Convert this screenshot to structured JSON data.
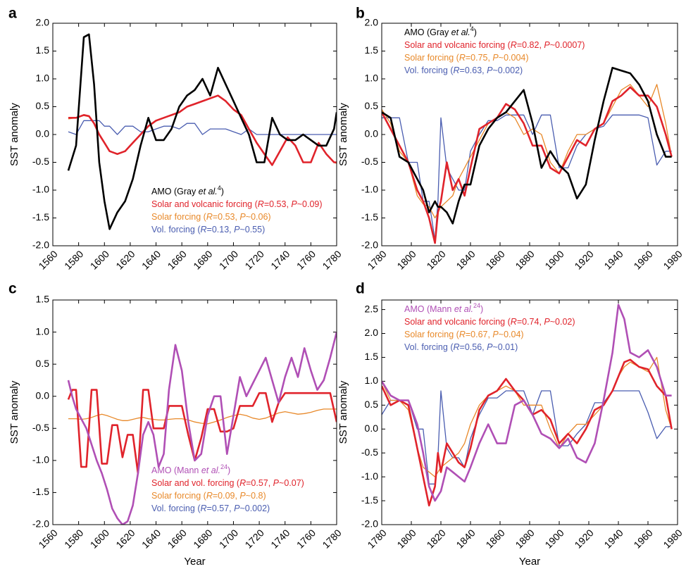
{
  "chart_data": [
    {
      "type": "line",
      "panel_label": "a",
      "ylabel": "SST anomaly",
      "legend": "lower right",
      "xlim": [
        1560,
        1780
      ],
      "xticks": [
        1560,
        1580,
        1600,
        1620,
        1640,
        1660,
        1680,
        1700,
        1720,
        1740,
        1760,
        1780
      ],
      "ylim": [
        -2,
        2
      ],
      "yticks": [
        {
          "value": -2,
          "label": "-2.0"
        },
        -1.5,
        {
          "value": -1,
          "label": "-1.0"
        },
        -0.5,
        {
          "value": 0,
          "label": "0.0"
        },
        0.5,
        {
          "value": 1,
          "label": "1.0"
        },
        1.5,
        {
          "value": 2,
          "label": "2.0"
        }
      ],
      "x": [
        1572,
        1578,
        1584,
        1588,
        1592,
        1596,
        1600,
        1604,
        1610,
        1616,
        1622,
        1628,
        1634,
        1640,
        1646,
        1652,
        1658,
        1664,
        1670,
        1676,
        1682,
        1688,
        1694,
        1700,
        1706,
        1712,
        1718,
        1724,
        1730,
        1736,
        1742,
        1748,
        1754,
        1760,
        1766,
        1772,
        1778,
        1780
      ],
      "series": [
        {
          "name": "AMO (Gray et al.4)",
          "color": "#000000",
          "width": 2.6,
          "values": [
            -0.65,
            -0.2,
            1.75,
            1.8,
            0.9,
            -0.5,
            -1.2,
            -1.7,
            -1.4,
            -1.2,
            -0.8,
            -0.2,
            0.3,
            -0.1,
            -0.1,
            0.1,
            0.5,
            0.7,
            0.8,
            1.0,
            0.7,
            1.2,
            0.9,
            0.6,
            0.3,
            0.0,
            -0.5,
            -0.5,
            0.3,
            0.0,
            -0.1,
            -0.1,
            0.0,
            -0.1,
            -0.2,
            -0.2,
            0.1,
            0.4
          ]
        },
        {
          "name": "Solar and volcanic forcing (R=0.53, P~0.09)",
          "color": "#e0232b",
          "width": 2.6,
          "values": [
            0.3,
            0.3,
            0.35,
            0.33,
            0.2,
            0.0,
            -0.15,
            -0.3,
            -0.35,
            -0.3,
            -0.15,
            0.0,
            0.15,
            0.25,
            0.3,
            0.35,
            0.4,
            0.5,
            0.55,
            0.6,
            0.65,
            0.7,
            0.6,
            0.45,
            0.35,
            0.1,
            -0.15,
            -0.35,
            -0.55,
            -0.3,
            -0.05,
            -0.2,
            -0.5,
            -0.5,
            -0.15,
            -0.35,
            -0.5,
            -0.5
          ]
        },
        {
          "name": "Solar forcing (R=0.53, P~0.06)",
          "color": "#e8892a",
          "width": 1.3,
          "values": [
            0.28,
            0.3,
            0.34,
            0.32,
            0.2,
            0.0,
            -0.16,
            -0.3,
            -0.36,
            -0.3,
            -0.16,
            0.0,
            0.14,
            0.24,
            0.3,
            0.34,
            0.4,
            0.5,
            0.54,
            0.6,
            0.66,
            0.7,
            0.6,
            0.44,
            0.34,
            0.1,
            -0.16,
            -0.36,
            -0.55,
            -0.3,
            -0.06,
            -0.2,
            -0.5,
            -0.5,
            -0.16,
            -0.36,
            -0.5,
            -0.52
          ]
        },
        {
          "name": "Vol. forcing (R=0.13, P~0.55)",
          "color": "#4a5db0",
          "width": 1.3,
          "values": [
            0.05,
            0.0,
            0.25,
            0.25,
            0.25,
            0.25,
            0.15,
            0.15,
            0.0,
            0.15,
            0.15,
            0.05,
            0.05,
            0.1,
            0.15,
            0.15,
            0.1,
            0.2,
            0.2,
            0.0,
            0.1,
            0.1,
            0.1,
            0.05,
            0.0,
            0.1,
            0.0,
            0.0,
            0.0,
            0.0,
            0.0,
            0.0,
            0.0,
            0.0,
            0.0,
            0.0,
            0.0,
            0.0
          ]
        }
      ]
    },
    {
      "type": "line",
      "panel_label": "b",
      "ylabel": "SST anomaly",
      "legend": "upper left",
      "xlim": [
        1780,
        1980
      ],
      "xticks": [
        1780,
        1800,
        1820,
        1840,
        1860,
        1880,
        1900,
        1920,
        1940,
        1960,
        1980
      ],
      "ylim": [
        -2,
        2
      ],
      "yticks": [
        {
          "value": -2,
          "label": "-2.0"
        },
        -1.5,
        {
          "value": -1,
          "label": "-1.0"
        },
        -0.5,
        {
          "value": 0,
          "label": "0.0"
        },
        0.5,
        {
          "value": 1,
          "label": "1.0"
        },
        1.5,
        {
          "value": 2,
          "label": "2.0"
        }
      ],
      "x": [
        1780,
        1786,
        1792,
        1798,
        1804,
        1808,
        1812,
        1816,
        1818,
        1820,
        1824,
        1828,
        1832,
        1836,
        1840,
        1846,
        1852,
        1858,
        1864,
        1870,
        1876,
        1882,
        1888,
        1894,
        1900,
        1906,
        1912,
        1918,
        1924,
        1930,
        1936,
        1942,
        1948,
        1954,
        1960,
        1966,
        1972,
        1976
      ],
      "series": [
        {
          "name": "AMO (Gray et al.4)",
          "color": "#000000",
          "width": 2.6,
          "values": [
            0.4,
            0.3,
            -0.4,
            -0.5,
            -0.8,
            -1.0,
            -1.4,
            -1.2,
            -1.3,
            -1.3,
            -1.4,
            -1.6,
            -1.2,
            -0.9,
            -0.9,
            -0.2,
            0.1,
            0.3,
            0.4,
            0.6,
            0.8,
            0.2,
            -0.6,
            -0.3,
            -0.55,
            -0.7,
            -1.15,
            -0.9,
            -0.1,
            0.6,
            1.2,
            1.15,
            1.1,
            0.9,
            0.6,
            0.0,
            -0.4,
            -0.4
          ]
        },
        {
          "name": "Solar and volcanic forcing (R=0.82, P~0.0007)",
          "color": "#e0232b",
          "width": 2.6,
          "values": [
            0.4,
            0.1,
            -0.2,
            -0.5,
            -1.0,
            -1.2,
            -1.5,
            -1.95,
            -1.4,
            -1.2,
            -0.5,
            -1.0,
            -0.8,
            -1.1,
            -0.6,
            0.1,
            0.2,
            0.3,
            0.55,
            0.45,
            0.2,
            -0.2,
            -0.2,
            -0.6,
            -0.7,
            -0.4,
            -0.1,
            -0.2,
            0.1,
            0.2,
            0.6,
            0.7,
            0.85,
            0.7,
            0.7,
            0.5,
            0.0,
            -0.4
          ]
        },
        {
          "name": "Solar forcing (R=0.75, P~0.004)",
          "color": "#e8892a",
          "width": 1.3,
          "values": [
            0.45,
            0.2,
            -0.3,
            -0.5,
            -1.1,
            -1.25,
            -1.3,
            -1.5,
            -1.4,
            -1.3,
            -1.2,
            -1.1,
            -0.8,
            -0.6,
            -0.4,
            -0.1,
            0.2,
            0.3,
            0.4,
            0.3,
            0.0,
            0.1,
            0.0,
            -0.5,
            -0.7,
            -0.3,
            0.0,
            0.0,
            0.1,
            0.2,
            0.5,
            0.8,
            0.9,
            0.7,
            0.5,
            0.9,
            0.2,
            -0.4
          ]
        },
        {
          "name": "Vol. forcing (R=0.63, P~0.002)",
          "color": "#4a5db0",
          "width": 1.3,
          "values": [
            0.3,
            0.3,
            0.3,
            -0.5,
            -0.5,
            -1.2,
            -1.2,
            -1.9,
            -1.2,
            0.3,
            -0.6,
            -0.8,
            -1.0,
            -1.0,
            -0.3,
            0.0,
            0.25,
            0.25,
            0.35,
            0.35,
            0.35,
            0.0,
            0.35,
            0.35,
            -0.6,
            -0.6,
            -0.2,
            0.0,
            0.1,
            0.15,
            0.35,
            0.35,
            0.35,
            0.35,
            0.3,
            -0.55,
            -0.3,
            -0.3
          ]
        }
      ]
    },
    {
      "type": "line",
      "panel_label": "c",
      "ylabel": "SST anomaly",
      "xlabel": "Year",
      "legend": "lower right",
      "xlim": [
        1560,
        1780
      ],
      "xticks": [
        1560,
        1580,
        1600,
        1620,
        1640,
        1660,
        1680,
        1700,
        1720,
        1740,
        1760,
        1780
      ],
      "ylim": [
        -2,
        1.5
      ],
      "yticks": [
        {
          "value": -2,
          "label": "-2.0"
        },
        -1.5,
        {
          "value": -1,
          "label": "-1.0"
        },
        -0.5,
        {
          "value": 0,
          "label": "0.0"
        },
        0.5,
        {
          "value": 1,
          "label": "1.0"
        },
        1.5
      ],
      "x": [
        1572,
        1575,
        1578,
        1582,
        1586,
        1590,
        1594,
        1598,
        1602,
        1606,
        1610,
        1614,
        1618,
        1622,
        1626,
        1630,
        1634,
        1638,
        1642,
        1646,
        1650,
        1655,
        1660,
        1665,
        1670,
        1675,
        1680,
        1685,
        1690,
        1695,
        1700,
        1705,
        1710,
        1715,
        1720,
        1725,
        1730,
        1735,
        1740,
        1745,
        1750,
        1755,
        1760,
        1765,
        1770,
        1775,
        1780
      ],
      "series": [
        {
          "name": "AMO (Mann et al.24)",
          "color": "#b04fb5",
          "width": 2.6,
          "values": [
            0.25,
            0.0,
            -0.2,
            -0.35,
            -0.5,
            -0.75,
            -1.0,
            -1.2,
            -1.45,
            -1.75,
            -1.9,
            -2.0,
            -1.95,
            -1.7,
            -1.2,
            -0.6,
            -0.4,
            -0.6,
            -1.1,
            -0.9,
            0.1,
            0.8,
            0.4,
            -0.4,
            -1.0,
            -0.9,
            -0.3,
            0.0,
            0.0,
            -0.9,
            -0.3,
            0.3,
            0.0,
            0.2,
            0.4,
            0.6,
            0.25,
            -0.1,
            0.3,
            0.6,
            0.3,
            0.75,
            0.4,
            0.1,
            0.25,
            0.6,
            1.0
          ]
        },
        {
          "name": "Solar and vol. forcing (R=0.57, P~0.07)",
          "color": "#e0232b",
          "width": 2.6,
          "values": [
            -0.05,
            0.1,
            0.1,
            -1.1,
            -1.1,
            0.1,
            0.1,
            -1.05,
            -1.05,
            -0.45,
            -0.45,
            -0.95,
            -0.6,
            -0.6,
            -1.2,
            0.1,
            0.1,
            -0.5,
            -0.5,
            -0.5,
            -0.15,
            -0.15,
            -0.15,
            -0.6,
            -1.0,
            -0.65,
            -0.2,
            -0.2,
            -0.55,
            -0.55,
            -0.5,
            -0.15,
            -0.15,
            -0.15,
            0.05,
            0.05,
            -0.4,
            -0.1,
            0.05,
            0.05,
            0.05,
            0.05,
            0.05,
            0.05,
            0.05,
            0.05,
            -0.4
          ]
        },
        {
          "name": "Solar forcing (R=0.09, P~0.8)",
          "color": "#e8892a",
          "width": 1.3,
          "values": [
            -0.35,
            -0.35,
            -0.35,
            -0.36,
            -0.35,
            -0.33,
            -0.3,
            -0.28,
            -0.3,
            -0.33,
            -0.36,
            -0.38,
            -0.38,
            -0.36,
            -0.34,
            -0.33,
            -0.35,
            -0.36,
            -0.37,
            -0.37,
            -0.36,
            -0.35,
            -0.35,
            -0.37,
            -0.4,
            -0.42,
            -0.43,
            -0.4,
            -0.37,
            -0.33,
            -0.3,
            -0.28,
            -0.3,
            -0.34,
            -0.36,
            -0.34,
            -0.3,
            -0.26,
            -0.24,
            -0.26,
            -0.28,
            -0.27,
            -0.25,
            -0.22,
            -0.2,
            -0.2,
            -0.2
          ]
        },
        {
          "name": "Vol. forcing (R=0.57, P~0.002)",
          "color": "#4a5db0",
          "width": 1.3,
          "values": [
            -0.05,
            0.1,
            0.1,
            -1.1,
            -1.1,
            0.1,
            0.1,
            -1.05,
            -1.05,
            -0.45,
            -0.45,
            -0.95,
            -0.6,
            -0.6,
            -1.2,
            0.1,
            0.1,
            -0.5,
            -0.5,
            -0.5,
            -0.15,
            -0.15,
            -0.15,
            -0.6,
            -1.0,
            -0.65,
            -0.2,
            -0.2,
            -0.55,
            -0.55,
            -0.5,
            -0.15,
            -0.15,
            -0.15,
            0.05,
            0.05,
            -0.4,
            -0.1,
            0.05,
            0.05,
            0.05,
            0.05,
            0.05,
            0.05,
            0.05,
            0.05,
            -0.4
          ]
        }
      ]
    },
    {
      "type": "line",
      "panel_label": "d",
      "ylabel": "SST anomaly",
      "xlabel": "Year",
      "legend": "upper left",
      "xlim": [
        1780,
        1980
      ],
      "xticks": [
        1780,
        1800,
        1820,
        1840,
        1860,
        1880,
        1900,
        1920,
        1940,
        1960,
        1980
      ],
      "ylim": [
        -2,
        2.7
      ],
      "yticks": [
        {
          "value": -2,
          "label": "-2.0"
        },
        -1.5,
        {
          "value": -1,
          "label": "-1.0"
        },
        -0.5,
        {
          "value": 0,
          "label": "0.0"
        },
        0.5,
        {
          "value": 1,
          "label": "1.0"
        },
        1.5,
        {
          "value": 2,
          "label": "2.0"
        },
        2.5
      ],
      "x": [
        1780,
        1786,
        1792,
        1798,
        1804,
        1808,
        1812,
        1816,
        1818,
        1820,
        1824,
        1828,
        1832,
        1836,
        1840,
        1846,
        1852,
        1858,
        1864,
        1870,
        1876,
        1882,
        1888,
        1894,
        1900,
        1906,
        1912,
        1918,
        1924,
        1930,
        1936,
        1940,
        1944,
        1948,
        1954,
        1960,
        1966,
        1972,
        1976
      ],
      "series": [
        {
          "name": "AMO (Mann et al.24)",
          "color": "#b04fb5",
          "width": 2.6,
          "values": [
            1.0,
            0.7,
            0.6,
            0.6,
            0.1,
            -0.5,
            -1.2,
            -1.5,
            -1.4,
            -1.3,
            -0.8,
            -0.9,
            -1.0,
            -1.1,
            -0.8,
            -0.3,
            0.1,
            -0.3,
            -0.3,
            0.5,
            0.6,
            0.3,
            -0.1,
            -0.2,
            -0.4,
            -0.2,
            -0.6,
            -0.7,
            -0.3,
            0.6,
            1.6,
            2.6,
            2.3,
            1.6,
            1.5,
            1.65,
            1.3,
            0.7,
            0.7
          ]
        },
        {
          "name": "Solar and volcanic forcing (R=0.74, P~0.02)",
          "color": "#e0232b",
          "width": 2.6,
          "values": [
            0.9,
            0.5,
            0.6,
            0.5,
            -0.4,
            -1.0,
            -1.6,
            -1.2,
            -0.5,
            -0.9,
            -0.3,
            -0.5,
            -0.7,
            -0.8,
            -0.4,
            0.4,
            0.7,
            0.8,
            1.05,
            0.8,
            0.6,
            0.3,
            0.4,
            0.2,
            -0.3,
            -0.1,
            -0.3,
            0.0,
            0.4,
            0.5,
            0.8,
            1.1,
            1.4,
            1.45,
            1.3,
            1.25,
            0.9,
            0.7,
            0.0
          ]
        },
        {
          "name": "Solar forcing (R=0.67, P~0.04)",
          "color": "#e8892a",
          "width": 1.3,
          "values": [
            1.0,
            0.6,
            0.6,
            0.4,
            -0.4,
            -0.8,
            -0.9,
            -1.0,
            -0.9,
            -0.8,
            -0.7,
            -0.6,
            -0.5,
            -0.3,
            0.1,
            0.5,
            0.7,
            0.8,
            0.9,
            0.8,
            0.5,
            0.5,
            0.5,
            0.0,
            -0.4,
            -0.1,
            0.1,
            0.1,
            0.3,
            0.5,
            0.8,
            1.1,
            1.3,
            1.4,
            1.3,
            1.2,
            1.5,
            0.4,
            0.0
          ]
        },
        {
          "name": "Vol. forcing (R=0.56, P~0.01)",
          "color": "#4a5db0",
          "width": 1.3,
          "values": [
            0.3,
            0.6,
            0.6,
            0.6,
            0.0,
            0.0,
            -1.15,
            -1.15,
            -0.6,
            0.8,
            -0.4,
            -0.6,
            -0.6,
            -0.8,
            -0.2,
            0.3,
            0.65,
            0.65,
            0.8,
            0.8,
            0.8,
            0.3,
            0.8,
            0.8,
            -0.35,
            -0.35,
            -0.1,
            0.1,
            0.55,
            0.55,
            0.8,
            0.8,
            0.8,
            0.8,
            0.8,
            0.35,
            -0.2,
            0.05,
            0.05
          ]
        }
      ]
    }
  ]
}
